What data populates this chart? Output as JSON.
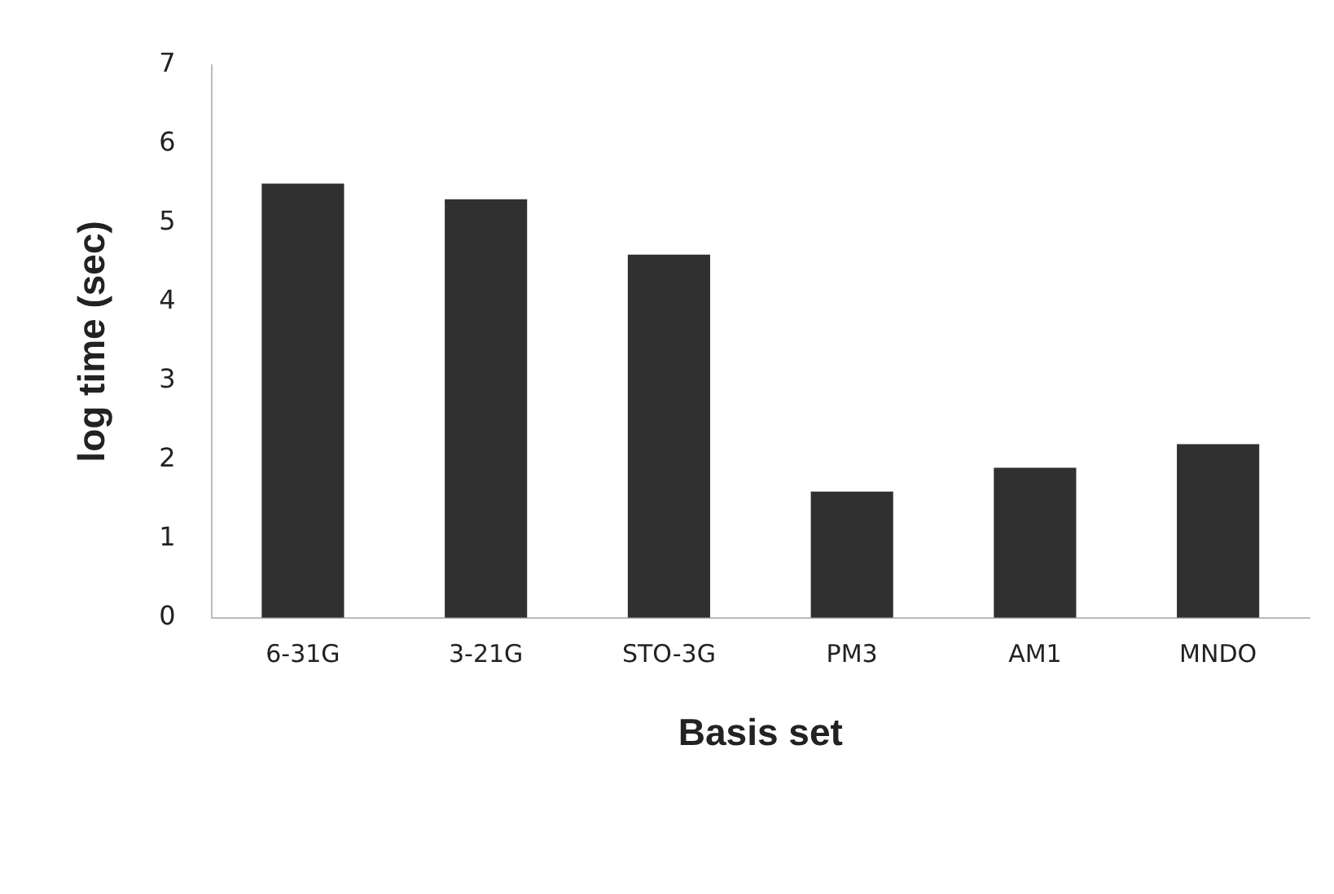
{
  "chart_data": {
    "type": "bar",
    "xlabel": "Basis set",
    "ylabel": "log time (sec)",
    "categories": [
      "6-31G",
      "3-21G",
      "STO-3G",
      "PM3",
      "AM1",
      "MNDO"
    ],
    "values": [
      5.5,
      5.3,
      4.6,
      1.6,
      1.9,
      2.2
    ],
    "color": "#303030",
    "ylim": [
      0,
      7
    ],
    "yticks": [
      0,
      1,
      2,
      3,
      4,
      5,
      6,
      7
    ],
    "grid": false,
    "legend": false
  }
}
